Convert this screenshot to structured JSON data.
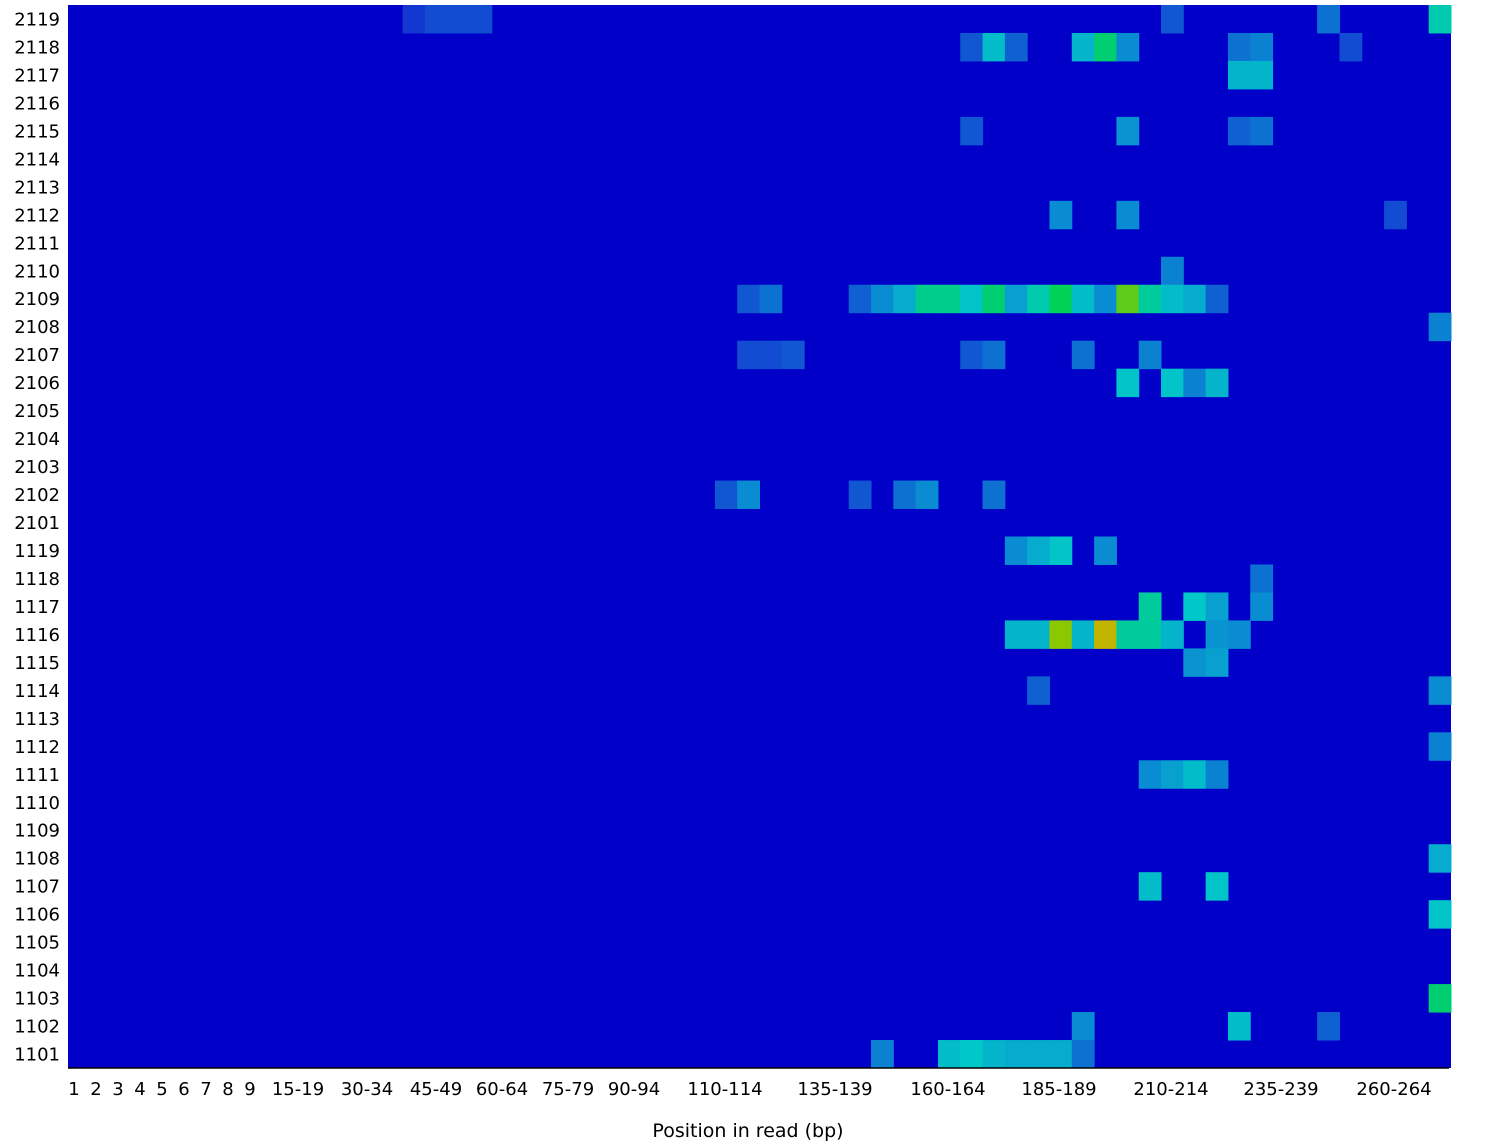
{
  "chart_data": {
    "type": "heatmap",
    "title": "",
    "xlabel": "Position in read (bp)",
    "ylabel": "",
    "grid": false,
    "legend": "none",
    "colors": {
      "low": "#0000c8",
      "high": "#e6a800",
      "background": "#ffffff"
    },
    "x_tick_labels": [
      "1",
      "2",
      "3",
      "4",
      "5",
      "6",
      "7",
      "8",
      "9",
      "15-19",
      "30-34",
      "45-49",
      "60-64",
      "75-79",
      "90-94",
      "110-114",
      "135-139",
      "160-164",
      "185-189",
      "210-214",
      "235-239",
      "260-264"
    ],
    "tiles": [
      "2119",
      "2118",
      "2117",
      "2116",
      "2115",
      "2114",
      "2113",
      "2112",
      "2111",
      "2110",
      "2109",
      "2108",
      "2107",
      "2106",
      "2105",
      "2104",
      "2103",
      "2102",
      "2101",
      "1119",
      "1118",
      "1117",
      "1116",
      "1115",
      "1114",
      "1113",
      "1112",
      "1111",
      "1110",
      "1109",
      "1108",
      "1107",
      "1106",
      "1105",
      "1104",
      "1103",
      "1102",
      "1101"
    ],
    "position_bins": 62,
    "value_scale": "0 = no deviation (dark blue), 1 = highest deviation (orange)",
    "hotspots": [
      {
        "tile": "2119",
        "bin": 15,
        "value": 0.14
      },
      {
        "tile": "2119",
        "bin": 16,
        "value": 0.18
      },
      {
        "tile": "2119",
        "bin": 17,
        "value": 0.18
      },
      {
        "tile": "2119",
        "bin": 18,
        "value": 0.18
      },
      {
        "tile": "2119",
        "bin": 49,
        "value": 0.2
      },
      {
        "tile": "2119",
        "bin": 56,
        "value": 0.25
      },
      {
        "tile": "2119",
        "bin": 61,
        "value": 0.48
      },
      {
        "tile": "2118",
        "bin": 40,
        "value": 0.2
      },
      {
        "tile": "2118",
        "bin": 41,
        "value": 0.42
      },
      {
        "tile": "2118",
        "bin": 42,
        "value": 0.22
      },
      {
        "tile": "2118",
        "bin": 45,
        "value": 0.4
      },
      {
        "tile": "2118",
        "bin": 46,
        "value": 0.55
      },
      {
        "tile": "2118",
        "bin": 47,
        "value": 0.3
      },
      {
        "tile": "2118",
        "bin": 52,
        "value": 0.25
      },
      {
        "tile": "2118",
        "bin": 53,
        "value": 0.28
      },
      {
        "tile": "2118",
        "bin": 57,
        "value": 0.18
      },
      {
        "tile": "2117",
        "bin": 52,
        "value": 0.4
      },
      {
        "tile": "2117",
        "bin": 53,
        "value": 0.4
      },
      {
        "tile": "2115",
        "bin": 40,
        "value": 0.2
      },
      {
        "tile": "2115",
        "bin": 47,
        "value": 0.32
      },
      {
        "tile": "2115",
        "bin": 52,
        "value": 0.22
      },
      {
        "tile": "2115",
        "bin": 53,
        "value": 0.25
      },
      {
        "tile": "2112",
        "bin": 44,
        "value": 0.3
      },
      {
        "tile": "2112",
        "bin": 47,
        "value": 0.3
      },
      {
        "tile": "2112",
        "bin": 59,
        "value": 0.18
      },
      {
        "tile": "2110",
        "bin": 49,
        "value": 0.28
      },
      {
        "tile": "2109",
        "bin": 30,
        "value": 0.2
      },
      {
        "tile": "2109",
        "bin": 31,
        "value": 0.25
      },
      {
        "tile": "2109",
        "bin": 35,
        "value": 0.22
      },
      {
        "tile": "2109",
        "bin": 36,
        "value": 0.3
      },
      {
        "tile": "2109",
        "bin": 37,
        "value": 0.38
      },
      {
        "tile": "2109",
        "bin": 38,
        "value": 0.52
      },
      {
        "tile": "2109",
        "bin": 39,
        "value": 0.52
      },
      {
        "tile": "2109",
        "bin": 40,
        "value": 0.44
      },
      {
        "tile": "2109",
        "bin": 41,
        "value": 0.55
      },
      {
        "tile": "2109",
        "bin": 42,
        "value": 0.35
      },
      {
        "tile": "2109",
        "bin": 43,
        "value": 0.48
      },
      {
        "tile": "2109",
        "bin": 44,
        "value": 0.58
      },
      {
        "tile": "2109",
        "bin": 45,
        "value": 0.42
      },
      {
        "tile": "2109",
        "bin": 46,
        "value": 0.3
      },
      {
        "tile": "2109",
        "bin": 47,
        "value": 0.7
      },
      {
        "tile": "2109",
        "bin": 48,
        "value": 0.5
      },
      {
        "tile": "2109",
        "bin": 49,
        "value": 0.42
      },
      {
        "tile": "2109",
        "bin": 50,
        "value": 0.38
      },
      {
        "tile": "2109",
        "bin": 51,
        "value": 0.22
      },
      {
        "tile": "2108",
        "bin": 61,
        "value": 0.28
      },
      {
        "tile": "2107",
        "bin": 30,
        "value": 0.18
      },
      {
        "tile": "2107",
        "bin": 31,
        "value": 0.18
      },
      {
        "tile": "2107",
        "bin": 32,
        "value": 0.2
      },
      {
        "tile": "2107",
        "bin": 40,
        "value": 0.2
      },
      {
        "tile": "2107",
        "bin": 41,
        "value": 0.25
      },
      {
        "tile": "2107",
        "bin": 45,
        "value": 0.25
      },
      {
        "tile": "2107",
        "bin": 48,
        "value": 0.28
      },
      {
        "tile": "2106",
        "bin": 47,
        "value": 0.44
      },
      {
        "tile": "2106",
        "bin": 49,
        "value": 0.44
      },
      {
        "tile": "2106",
        "bin": 50,
        "value": 0.28
      },
      {
        "tile": "2106",
        "bin": 51,
        "value": 0.4
      },
      {
        "tile": "2102",
        "bin": 29,
        "value": 0.2
      },
      {
        "tile": "2102",
        "bin": 30,
        "value": 0.3
      },
      {
        "tile": "2102",
        "bin": 35,
        "value": 0.2
      },
      {
        "tile": "2102",
        "bin": 37,
        "value": 0.25
      },
      {
        "tile": "2102",
        "bin": 38,
        "value": 0.3
      },
      {
        "tile": "2102",
        "bin": 41,
        "value": 0.25
      },
      {
        "tile": "1119",
        "bin": 42,
        "value": 0.3
      },
      {
        "tile": "1119",
        "bin": 43,
        "value": 0.38
      },
      {
        "tile": "1119",
        "bin": 44,
        "value": 0.44
      },
      {
        "tile": "1119",
        "bin": 46,
        "value": 0.3
      },
      {
        "tile": "1118",
        "bin": 53,
        "value": 0.25
      },
      {
        "tile": "1117",
        "bin": 48,
        "value": 0.5
      },
      {
        "tile": "1117",
        "bin": 50,
        "value": 0.45
      },
      {
        "tile": "1117",
        "bin": 51,
        "value": 0.35
      },
      {
        "tile": "1117",
        "bin": 53,
        "value": 0.3
      },
      {
        "tile": "1116",
        "bin": 42,
        "value": 0.4
      },
      {
        "tile": "1116",
        "bin": 43,
        "value": 0.4
      },
      {
        "tile": "1116",
        "bin": 44,
        "value": 0.75
      },
      {
        "tile": "1116",
        "bin": 45,
        "value": 0.4
      },
      {
        "tile": "1116",
        "bin": 46,
        "value": 0.9
      },
      {
        "tile": "1116",
        "bin": 47,
        "value": 0.5
      },
      {
        "tile": "1116",
        "bin": 48,
        "value": 0.5
      },
      {
        "tile": "1116",
        "bin": 49,
        "value": 0.4
      },
      {
        "tile": "1116",
        "bin": 51,
        "value": 0.32
      },
      {
        "tile": "1116",
        "bin": 52,
        "value": 0.3
      },
      {
        "tile": "1115",
        "bin": 50,
        "value": 0.32
      },
      {
        "tile": "1115",
        "bin": 51,
        "value": 0.35
      },
      {
        "tile": "1114",
        "bin": 43,
        "value": 0.22
      },
      {
        "tile": "1114",
        "bin": 61,
        "value": 0.3
      },
      {
        "tile": "1112",
        "bin": 61,
        "value": 0.28
      },
      {
        "tile": "1111",
        "bin": 48,
        "value": 0.3
      },
      {
        "tile": "1111",
        "bin": 49,
        "value": 0.35
      },
      {
        "tile": "1111",
        "bin": 50,
        "value": 0.42
      },
      {
        "tile": "1111",
        "bin": 51,
        "value": 0.28
      },
      {
        "tile": "1108",
        "bin": 61,
        "value": 0.38
      },
      {
        "tile": "1107",
        "bin": 48,
        "value": 0.42
      },
      {
        "tile": "1107",
        "bin": 51,
        "value": 0.44
      },
      {
        "tile": "1106",
        "bin": 61,
        "value": 0.44
      },
      {
        "tile": "1103",
        "bin": 61,
        "value": 0.55
      },
      {
        "tile": "1102",
        "bin": 45,
        "value": 0.3
      },
      {
        "tile": "1102",
        "bin": 52,
        "value": 0.42
      },
      {
        "tile": "1102",
        "bin": 56,
        "value": 0.22
      },
      {
        "tile": "1101",
        "bin": 36,
        "value": 0.28
      },
      {
        "tile": "1101",
        "bin": 39,
        "value": 0.42
      },
      {
        "tile": "1101",
        "bin": 40,
        "value": 0.45
      },
      {
        "tile": "1101",
        "bin": 41,
        "value": 0.4
      },
      {
        "tile": "1101",
        "bin": 42,
        "value": 0.38
      },
      {
        "tile": "1101",
        "bin": 43,
        "value": 0.38
      },
      {
        "tile": "1101",
        "bin": 44,
        "value": 0.38
      },
      {
        "tile": "1101",
        "bin": 45,
        "value": 0.25
      }
    ]
  }
}
